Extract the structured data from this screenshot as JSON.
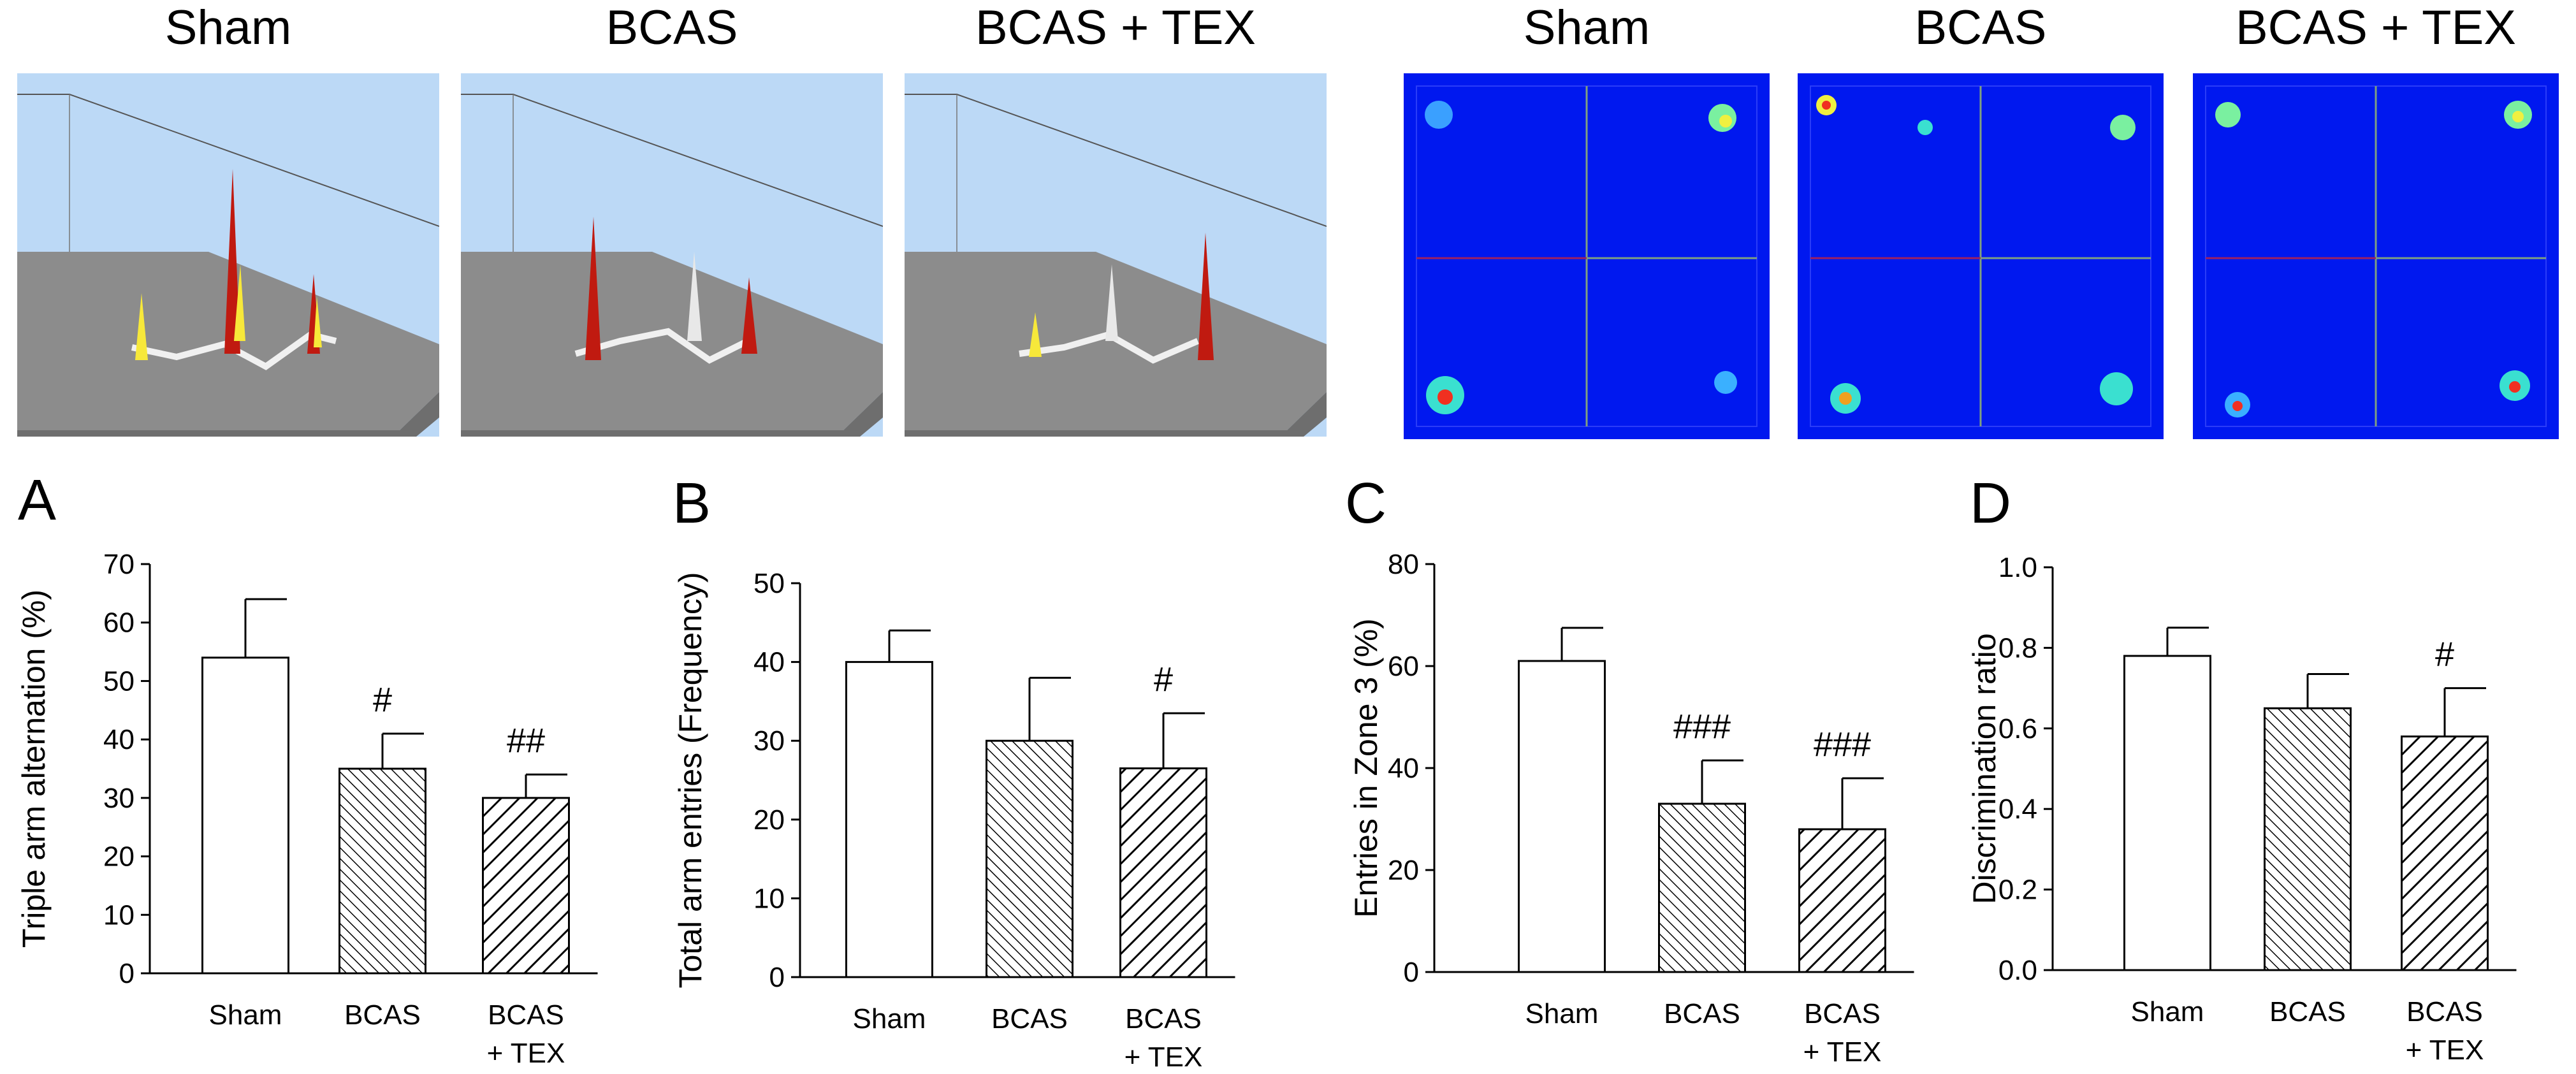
{
  "panel_titles": {
    "maze": [
      "Sham",
      "BCAS",
      "BCAS + TEX"
    ],
    "heatmap": [
      "Sham",
      "BCAS",
      "BCAS + TEX"
    ]
  },
  "chart_data": [
    {
      "type": "bar",
      "panel": "A",
      "categories": [
        [
          "Sham"
        ],
        [
          "BCAS"
        ],
        [
          "BCAS",
          "+ TEX"
        ]
      ],
      "values": [
        54,
        35,
        30
      ],
      "errors": [
        10,
        6,
        4
      ],
      "annotations": [
        "",
        "#",
        "##"
      ],
      "ylabel": "Triple arm alternation (%)",
      "ylim": [
        0,
        70
      ],
      "yticks": [
        "0",
        "10",
        "20",
        "30",
        "40",
        "50",
        "60",
        "70"
      ]
    },
    {
      "type": "bar",
      "panel": "B",
      "categories": [
        [
          "Sham"
        ],
        [
          "BCAS"
        ],
        [
          "BCAS",
          "+ TEX"
        ]
      ],
      "values": [
        40,
        30,
        26.5
      ],
      "errors": [
        4,
        8,
        7
      ],
      "annotations": [
        "",
        "",
        "#"
      ],
      "ylabel": "Total arm entries (Frequency)",
      "ylim": [
        0,
        50
      ],
      "yticks": [
        "0",
        "10",
        "20",
        "30",
        "40",
        "50"
      ]
    },
    {
      "type": "bar",
      "panel": "C",
      "categories": [
        [
          "Sham"
        ],
        [
          "BCAS"
        ],
        [
          "BCAS",
          "+ TEX"
        ]
      ],
      "values": [
        61,
        33,
        28
      ],
      "errors": [
        6.5,
        8.5,
        10
      ],
      "annotations": [
        "",
        "###",
        "###"
      ],
      "ylabel": "Entries in Zone 3 (%)",
      "ylim": [
        0,
        80
      ],
      "yticks": [
        "0",
        "20",
        "40",
        "60",
        "80"
      ]
    },
    {
      "type": "bar",
      "panel": "D",
      "categories": [
        [
          "Sham"
        ],
        [
          "BCAS"
        ],
        [
          "BCAS",
          "+ TEX"
        ]
      ],
      "values": [
        0.78,
        0.65,
        0.58
      ],
      "errors": [
        0.07,
        0.085,
        0.12
      ],
      "annotations": [
        "",
        "",
        "#"
      ],
      "ylabel": "Discrimination ratio",
      "ylim": [
        0,
        1
      ],
      "yticks": [
        "0.0",
        "0.2",
        "0.4",
        "0.6",
        "0.8",
        "1.0"
      ]
    }
  ]
}
